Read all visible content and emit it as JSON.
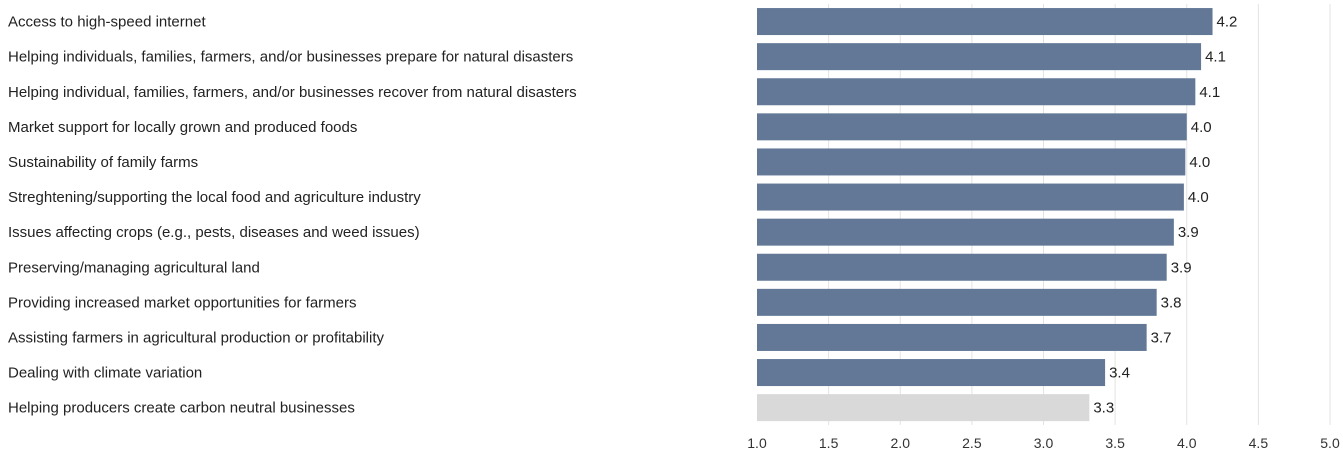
{
  "chart_data": {
    "type": "bar",
    "orientation": "horizontal",
    "title": "",
    "xlabel": "",
    "ylabel": "",
    "categories": [
      "Access to high-speed internet",
      "Helping individuals, families, farmers, and/or businesses prepare for natural disasters",
      "Helping individual, families, farmers, and/or businesses recover from natural disasters",
      "Market support for locally grown and produced foods",
      "Sustainability of family farms",
      "Streghtening/supporting the local food and agriculture industry",
      "Issues affecting crops (e.g., pests, diseases and weed issues)",
      "Preserving/managing agricultural land",
      "Providing increased market opportunities for farmers",
      "Assisting farmers in agricultural production or profitability",
      "Dealing with climate variation",
      "Helping producers create carbon neutral businesses"
    ],
    "values": [
      4.18,
      4.1,
      4.06,
      4.0,
      3.99,
      3.98,
      3.91,
      3.86,
      3.79,
      3.72,
      3.43,
      3.32
    ],
    "value_labels": [
      "4.2",
      "4.1",
      "4.1",
      "4.0",
      "4.0",
      "4.0",
      "3.9",
      "3.9",
      "3.8",
      "3.7",
      "3.4",
      "3.3"
    ],
    "xlim": [
      1.0,
      5.0
    ],
    "x_ticks": [
      "1.0",
      "1.5",
      "2.0",
      "2.5",
      "3.0",
      "3.5",
      "4.0",
      "4.5",
      "5.0"
    ],
    "grid": "vertical",
    "colors": {
      "bar": "#627896",
      "bar_highlight": "#d9d9d9",
      "grid": "#e3e3e3"
    },
    "highlighted_indices": [
      11
    ]
  }
}
